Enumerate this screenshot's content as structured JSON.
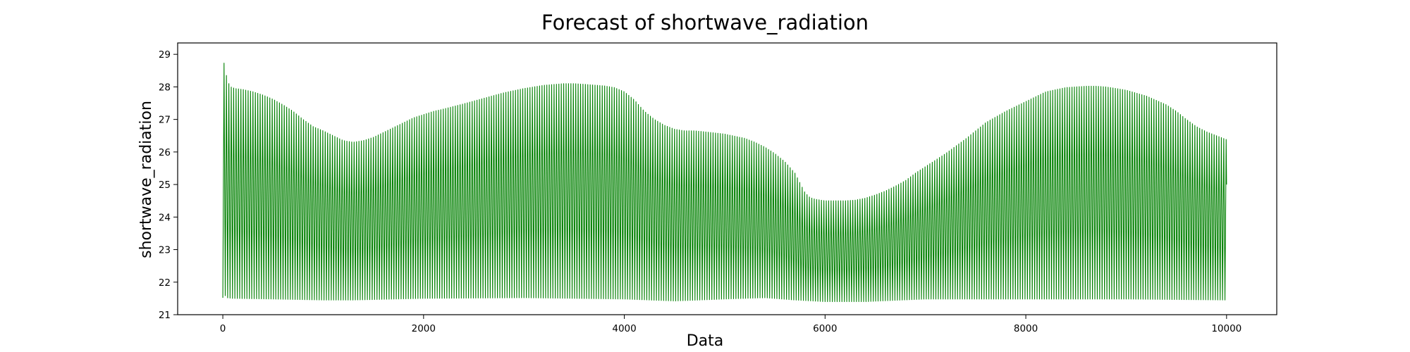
{
  "chart_data": {
    "type": "line",
    "title": "Forecast of shortwave_radiation",
    "xlabel": "Data",
    "ylabel": "shortwave_radiation",
    "xlim": [
      -450,
      10500
    ],
    "ylim": [
      21.0,
      29.35
    ],
    "x_ticks": [
      0,
      2000,
      4000,
      6000,
      8000,
      10000
    ],
    "y_ticks": [
      21,
      22,
      23,
      24,
      25,
      26,
      27,
      28,
      29
    ],
    "grid": false,
    "legend": "none",
    "color": "#008000",
    "series": [
      {
        "cycle_length": 24,
        "x_start": 0,
        "x_end": 10000,
        "upper_envelope": {
          "x": [
            0,
            20,
            40,
            60,
            80,
            120,
            200,
            300,
            400,
            500,
            600,
            700,
            800,
            900,
            1000,
            1100,
            1200,
            1300,
            1400,
            1500,
            1600,
            1700,
            1800,
            1900,
            2000,
            2100,
            2200,
            2400,
            2600,
            2800,
            3000,
            3200,
            3400,
            3500,
            3600,
            3800,
            3900,
            4000,
            4100,
            4200,
            4300,
            4400,
            4500,
            4600,
            4700,
            4800,
            5000,
            5200,
            5300,
            5400,
            5500,
            5600,
            5700,
            5750,
            5800,
            5850,
            5900,
            6000,
            6100,
            6200,
            6300,
            6400,
            6500,
            6600,
            6700,
            6800,
            6900,
            7000,
            7200,
            7400,
            7600,
            7800,
            8000,
            8200,
            8400,
            8600,
            8700,
            8800,
            9000,
            9200,
            9400,
            9500,
            9600,
            9700,
            9800,
            10000
          ],
          "y": [
            29.0,
            28.55,
            28.3,
            28.1,
            28.0,
            27.95,
            27.92,
            27.85,
            27.75,
            27.62,
            27.45,
            27.25,
            27.0,
            26.78,
            26.65,
            26.5,
            26.35,
            26.3,
            26.35,
            26.45,
            26.6,
            26.75,
            26.9,
            27.05,
            27.15,
            27.25,
            27.32,
            27.48,
            27.65,
            27.82,
            27.95,
            28.05,
            28.1,
            28.1,
            28.08,
            28.03,
            27.98,
            27.85,
            27.6,
            27.25,
            27.0,
            26.82,
            26.7,
            26.65,
            26.65,
            26.62,
            26.55,
            26.42,
            26.3,
            26.15,
            25.95,
            25.7,
            25.35,
            25.05,
            24.75,
            24.6,
            24.55,
            24.5,
            24.5,
            24.5,
            24.52,
            24.58,
            24.68,
            24.8,
            24.95,
            25.12,
            25.35,
            25.55,
            25.95,
            26.4,
            26.9,
            27.25,
            27.55,
            27.85,
            27.98,
            28.02,
            28.02,
            28.0,
            27.9,
            27.72,
            27.45,
            27.25,
            27.0,
            26.78,
            26.62,
            26.38
          ],
          "units": "shortwave_radiation"
        },
        "lower_envelope": {
          "x": [
            0,
            20,
            40,
            100,
            500,
            1000,
            1300,
            2000,
            3000,
            4000,
            4500,
            5000,
            5400,
            5700,
            6000,
            6400,
            7000,
            8000,
            9000,
            10000
          ],
          "y": [
            21.52,
            21.6,
            21.52,
            21.5,
            21.48,
            21.45,
            21.45,
            21.5,
            21.52,
            21.48,
            21.42,
            21.48,
            21.52,
            21.45,
            21.4,
            21.4,
            21.48,
            21.48,
            21.48,
            21.45
          ]
        },
        "end_value": 25.0
      }
    ]
  }
}
